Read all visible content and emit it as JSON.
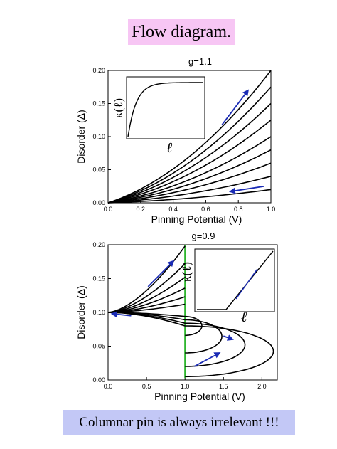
{
  "slide": {
    "title": "Flow diagram.",
    "footer": "Columnar pin is always irrelevant !!!",
    "title_bg": "#f7c6f4",
    "footer_bg": "#c3c8f6"
  },
  "chart_data": [
    {
      "type": "line",
      "title": "g=1.1",
      "xlabel": "Pinning Potential (V)",
      "ylabel": "Disorder (Δ)",
      "xlim": [
        0,
        1.0
      ],
      "ylim": [
        0,
        0.2
      ],
      "xticks": [
        "0.0",
        "0.2",
        "0.4",
        "0.6",
        "0.8",
        "1.0"
      ],
      "yticks": [
        "0.00",
        "0.05",
        "0.10",
        "0.15",
        "0.20"
      ],
      "series": [
        {
          "values_at_x1": 0.2
        },
        {
          "values_at_x1": 0.175
        },
        {
          "values_at_x1": 0.15
        },
        {
          "values_at_x1": 0.125
        },
        {
          "values_at_x1": 0.1
        },
        {
          "values_at_x1": 0.08
        },
        {
          "values_at_x1": 0.06
        },
        {
          "values_at_x1": 0.04
        },
        {
          "values_at_x1": 0.02
        }
      ],
      "curve_shape": "y = a*(0.4*x + 0.6*x^2), flowing from origin",
      "arrows": [
        {
          "from": [
            0.7,
            0.118
          ],
          "to": [
            0.86,
            0.17
          ],
          "color": "#1a2bb5"
        },
        {
          "from": [
            0.96,
            0.025
          ],
          "to": [
            0.75,
            0.017
          ],
          "color": "#1a2bb5"
        }
      ],
      "inset": {
        "ylabel": "κ(ℓ)",
        "xlabel": "ℓ",
        "shape": "rises steeply then saturates"
      },
      "grid": false
    },
    {
      "type": "line",
      "title": "g=0.9",
      "xlabel": "Pinning Potential (V)",
      "ylabel": "Disorder (Δ)",
      "xlim": [
        0,
        2.2
      ],
      "ylim": [
        0,
        0.2
      ],
      "xticks": [
        "0.0",
        "0.5",
        "1.0",
        "1.5",
        "2.0"
      ],
      "yticks": [
        "0.00",
        "0.05",
        "0.10",
        "0.15",
        "0.20"
      ],
      "fixed_line": {
        "x": 1.0,
        "color": "#2fb62f"
      },
      "upper_curves_end_at_x1": [
        0.198,
        0.172,
        0.152,
        0.136,
        0.123,
        0.112
      ],
      "lower_curves": [
        {
          "ends_y": [
            0.094,
            0.066
          ],
          "tip_x": 1.22
        },
        {
          "ends_y": [
            0.089,
            0.04
          ],
          "tip_x": 1.48
        },
        {
          "ends_y": [
            0.084,
            0.02
          ],
          "tip_x": 1.78
        },
        {
          "ends_y": [
            0.08,
            0.005
          ],
          "tip_x": 2.15
        }
      ],
      "arrows": [
        {
          "from": [
            0.52,
            0.138
          ],
          "to": [
            0.85,
            0.176
          ],
          "color": "#1a2bb5"
        },
        {
          "from": [
            0.3,
            0.095
          ],
          "to": [
            0.05,
            0.098
          ],
          "color": "#1a2bb5"
        },
        {
          "from": [
            1.5,
            0.065
          ],
          "to": [
            1.62,
            0.06
          ],
          "color": "#1a2bb5"
        },
        {
          "from": [
            1.12,
            0.02
          ],
          "to": [
            1.45,
            0.04
          ],
          "color": "#1a2bb5"
        }
      ],
      "inset": {
        "ylabel": "κ(ℓ)",
        "xlabel": "ℓ",
        "shape": "flat then rises linearly"
      },
      "grid": false
    }
  ]
}
